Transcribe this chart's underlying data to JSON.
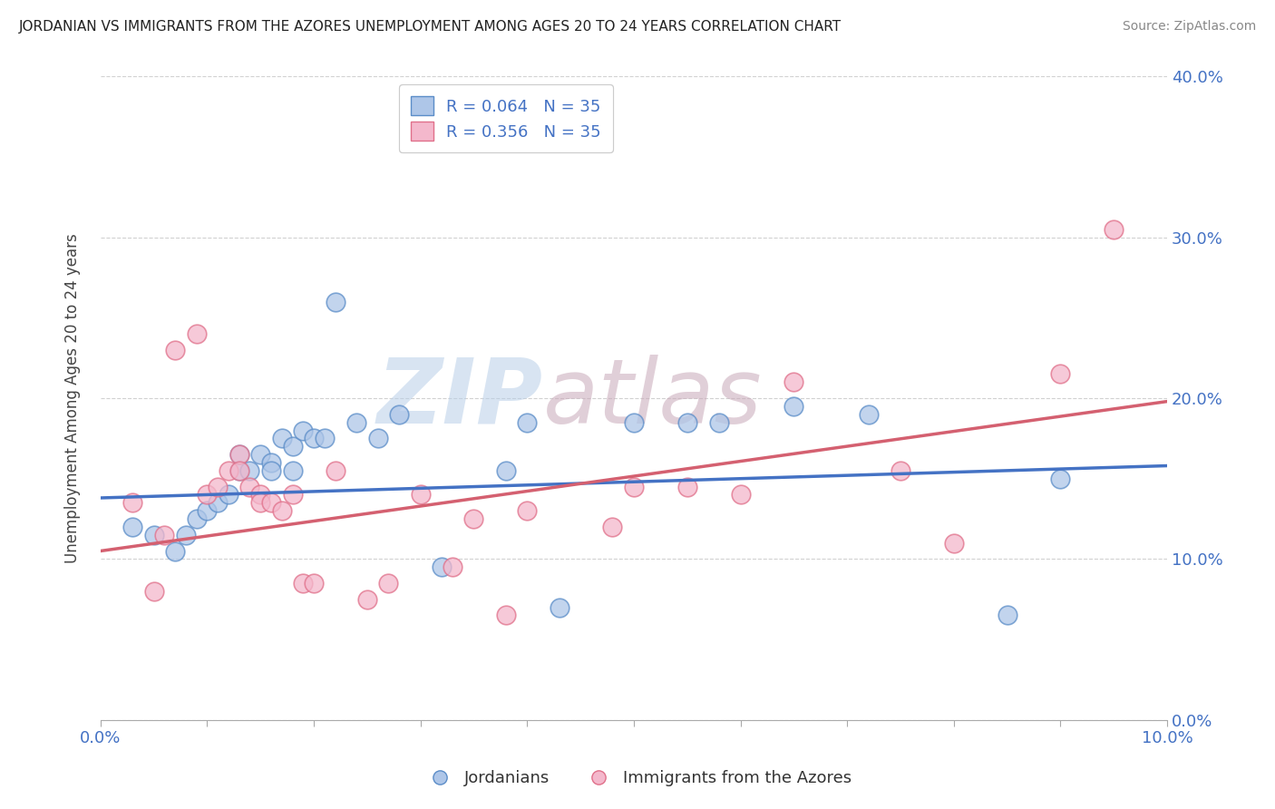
{
  "title": "JORDANIAN VS IMMIGRANTS FROM THE AZORES UNEMPLOYMENT AMONG AGES 20 TO 24 YEARS CORRELATION CHART",
  "source": "Source: ZipAtlas.com",
  "ylabel": "Unemployment Among Ages 20 to 24 years",
  "xlabel_jordanians": "Jordanians",
  "xlabel_azores": "Immigrants from the Azores",
  "watermark_zip": "ZIP",
  "watermark_atlas": "atlas",
  "r_jordanians": 0.064,
  "r_azores": 0.356,
  "n": 35,
  "xlim": [
    0.0,
    0.1
  ],
  "ylim": [
    0.0,
    0.4
  ],
  "xtick_positions": [
    0.0,
    0.01,
    0.02,
    0.03,
    0.04,
    0.05,
    0.06,
    0.07,
    0.08,
    0.09,
    0.1
  ],
  "xtick_labels_show": {
    "0.0": "0.0%",
    "0.10": "10.0%"
  },
  "yticks": [
    0.0,
    0.1,
    0.2,
    0.3,
    0.4
  ],
  "color_jordanians": "#aec6e8",
  "color_azores": "#f4b8cc",
  "edge_jordanians": "#5b8dc8",
  "edge_azores": "#e0708a",
  "line_color_jordanians": "#4472c4",
  "line_color_azores": "#d46070",
  "jordanians_x": [
    0.003,
    0.005,
    0.007,
    0.008,
    0.009,
    0.01,
    0.011,
    0.012,
    0.013,
    0.013,
    0.014,
    0.015,
    0.016,
    0.016,
    0.017,
    0.018,
    0.018,
    0.019,
    0.02,
    0.021,
    0.022,
    0.024,
    0.026,
    0.028,
    0.032,
    0.038,
    0.04,
    0.043,
    0.05,
    0.055,
    0.058,
    0.065,
    0.072,
    0.085,
    0.09
  ],
  "jordanians_y": [
    0.12,
    0.115,
    0.105,
    0.115,
    0.125,
    0.13,
    0.135,
    0.14,
    0.155,
    0.165,
    0.155,
    0.165,
    0.16,
    0.155,
    0.175,
    0.17,
    0.155,
    0.18,
    0.175,
    0.175,
    0.26,
    0.185,
    0.175,
    0.19,
    0.095,
    0.155,
    0.185,
    0.07,
    0.185,
    0.185,
    0.185,
    0.195,
    0.19,
    0.065,
    0.15
  ],
  "azores_x": [
    0.003,
    0.005,
    0.006,
    0.007,
    0.009,
    0.01,
    0.011,
    0.012,
    0.013,
    0.013,
    0.014,
    0.015,
    0.015,
    0.016,
    0.017,
    0.018,
    0.019,
    0.02,
    0.022,
    0.025,
    0.027,
    0.03,
    0.033,
    0.035,
    0.038,
    0.04,
    0.048,
    0.05,
    0.055,
    0.06,
    0.065,
    0.075,
    0.08,
    0.09,
    0.095
  ],
  "azores_y": [
    0.135,
    0.08,
    0.115,
    0.23,
    0.24,
    0.14,
    0.145,
    0.155,
    0.165,
    0.155,
    0.145,
    0.14,
    0.135,
    0.135,
    0.13,
    0.14,
    0.085,
    0.085,
    0.155,
    0.075,
    0.085,
    0.14,
    0.095,
    0.125,
    0.065,
    0.13,
    0.12,
    0.145,
    0.145,
    0.14,
    0.21,
    0.155,
    0.11,
    0.215,
    0.305
  ],
  "trendline_j_x0": 0.0,
  "trendline_j_y0": 0.138,
  "trendline_j_x1": 0.1,
  "trendline_j_y1": 0.158,
  "trendline_a_x0": 0.0,
  "trendline_a_y0": 0.105,
  "trendline_a_x1": 0.1,
  "trendline_a_y1": 0.198
}
